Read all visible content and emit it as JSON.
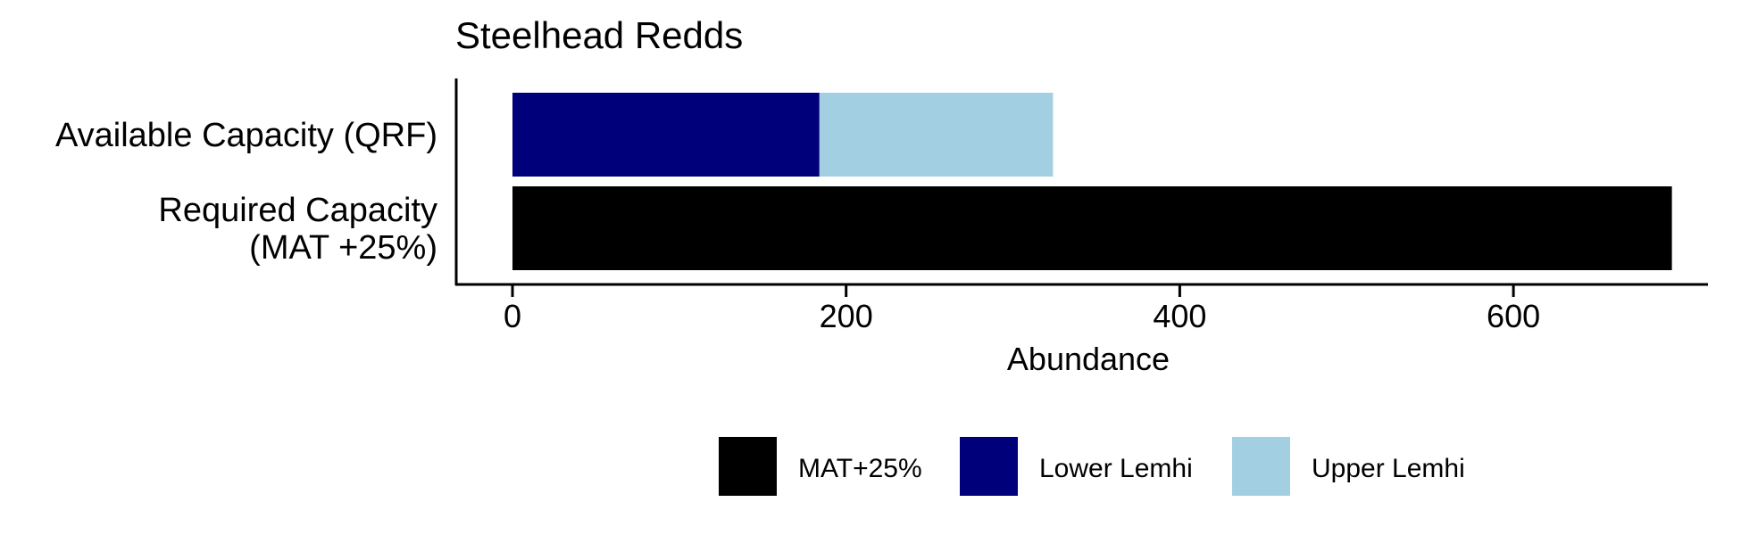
{
  "chart_data": {
    "type": "bar",
    "orientation": "horizontal",
    "stacked": true,
    "title": "Steelhead Redds",
    "xlabel": "Abundance",
    "ylabel": "",
    "xlim": [
      -40,
      715
    ],
    "xticks": [
      0,
      200,
      400,
      600
    ],
    "grid": false,
    "legend_position": "bottom",
    "categories": [
      {
        "label_lines": [
          "Available Capacity (QRF)"
        ]
      },
      {
        "label_lines": [
          "Required Capacity",
          "(MAT +25%)"
        ]
      }
    ],
    "series": [
      {
        "name": "MAT+25%",
        "color": "#000000",
        "values": [
          0,
          695
        ]
      },
      {
        "name": "Lower Lemhi",
        "color": "#00007A",
        "values": [
          184,
          0
        ]
      },
      {
        "name": "Upper Lemhi",
        "color": "#A2CFE1",
        "values": [
          140,
          0
        ]
      }
    ]
  }
}
